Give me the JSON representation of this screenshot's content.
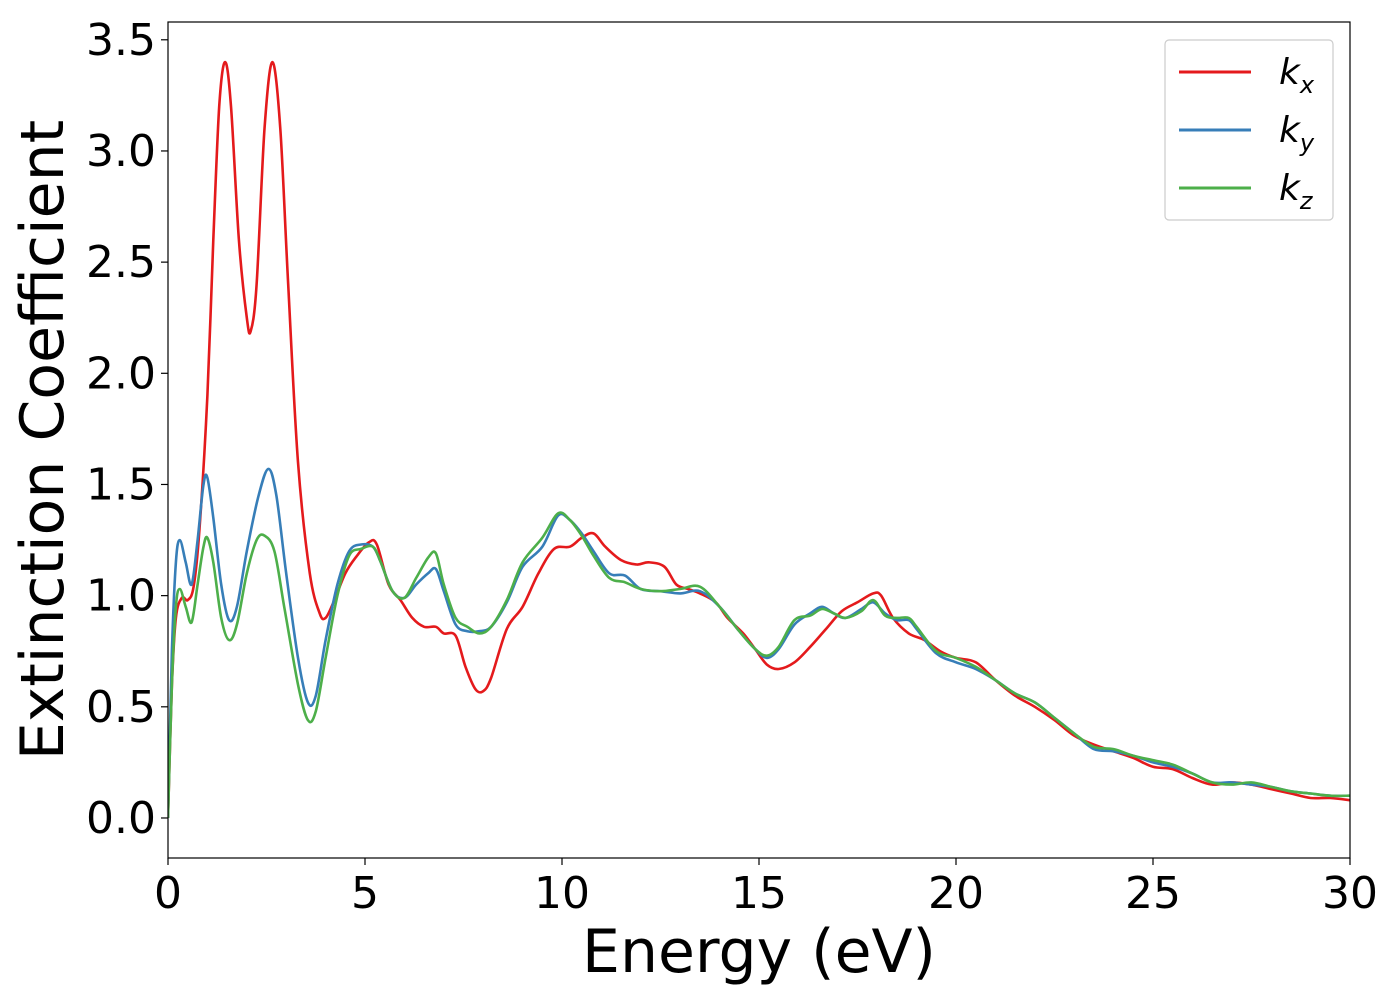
{
  "chart_data": {
    "type": "line",
    "xlabel": "Energy (eV)",
    "ylabel": "Extinction Coefficient",
    "xlim": [
      0,
      30
    ],
    "ylim": [
      -0.18,
      3.58
    ],
    "xticks": [
      0,
      5,
      10,
      15,
      20,
      25,
      30
    ],
    "yticks": [
      0.0,
      0.5,
      1.0,
      1.5,
      2.0,
      2.5,
      3.0,
      3.5
    ],
    "xtick_labels": [
      "0",
      "5",
      "10",
      "15",
      "20",
      "25",
      "30"
    ],
    "ytick_labels": [
      "0.0",
      "0.5",
      "1.0",
      "1.5",
      "2.0",
      "2.5",
      "3.0",
      "3.5"
    ],
    "grid": false,
    "legend": {
      "placement": "top-right"
    },
    "series": [
      {
        "name": "k_x",
        "label_base": "k",
        "label_sub": "x",
        "color": "#e41a1c",
        "points": [
          [
            0,
            0
          ],
          [
            0.1,
            0.6
          ],
          [
            0.2,
            0.9
          ],
          [
            0.35,
            0.99
          ],
          [
            0.5,
            0.98
          ],
          [
            0.65,
            1.04
          ],
          [
            0.8,
            1.3
          ],
          [
            1.0,
            1.9
          ],
          [
            1.15,
            2.6
          ],
          [
            1.3,
            3.2
          ],
          [
            1.45,
            3.4
          ],
          [
            1.6,
            3.2
          ],
          [
            1.8,
            2.6
          ],
          [
            2.0,
            2.25
          ],
          [
            2.1,
            2.19
          ],
          [
            2.25,
            2.4
          ],
          [
            2.45,
            3.1
          ],
          [
            2.65,
            3.4
          ],
          [
            2.85,
            3.1
          ],
          [
            3.05,
            2.4
          ],
          [
            3.3,
            1.6
          ],
          [
            3.6,
            1.1
          ],
          [
            3.85,
            0.92
          ],
          [
            4.0,
            0.9
          ],
          [
            4.2,
            0.97
          ],
          [
            4.5,
            1.1
          ],
          [
            4.8,
            1.18
          ],
          [
            5.1,
            1.24
          ],
          [
            5.3,
            1.23
          ],
          [
            5.6,
            1.05
          ],
          [
            5.9,
            0.98
          ],
          [
            6.2,
            0.9
          ],
          [
            6.5,
            0.86
          ],
          [
            6.8,
            0.86
          ],
          [
            7.0,
            0.83
          ],
          [
            7.3,
            0.82
          ],
          [
            7.55,
            0.68
          ],
          [
            7.8,
            0.58
          ],
          [
            8.0,
            0.57
          ],
          [
            8.2,
            0.63
          ],
          [
            8.6,
            0.85
          ],
          [
            9.0,
            0.95
          ],
          [
            9.4,
            1.1
          ],
          [
            9.8,
            1.21
          ],
          [
            10.2,
            1.22
          ],
          [
            10.5,
            1.26
          ],
          [
            10.8,
            1.28
          ],
          [
            11.1,
            1.22
          ],
          [
            11.5,
            1.16
          ],
          [
            11.9,
            1.14
          ],
          [
            12.2,
            1.15
          ],
          [
            12.6,
            1.13
          ],
          [
            12.9,
            1.05
          ],
          [
            13.2,
            1.03
          ],
          [
            13.5,
            1.01
          ],
          [
            13.9,
            0.97
          ],
          [
            14.2,
            0.9
          ],
          [
            14.6,
            0.83
          ],
          [
            14.9,
            0.76
          ],
          [
            15.2,
            0.69
          ],
          [
            15.5,
            0.67
          ],
          [
            15.9,
            0.7
          ],
          [
            16.3,
            0.77
          ],
          [
            16.7,
            0.85
          ],
          [
            17.1,
            0.93
          ],
          [
            17.5,
            0.97
          ],
          [
            17.9,
            1.01
          ],
          [
            18.1,
            1.0
          ],
          [
            18.4,
            0.9
          ],
          [
            18.8,
            0.83
          ],
          [
            19.2,
            0.8
          ],
          [
            19.6,
            0.75
          ],
          [
            20.0,
            0.72
          ],
          [
            20.5,
            0.7
          ],
          [
            21.0,
            0.62
          ],
          [
            21.5,
            0.55
          ],
          [
            22.0,
            0.5
          ],
          [
            22.5,
            0.44
          ],
          [
            23.0,
            0.37
          ],
          [
            23.5,
            0.33
          ],
          [
            24.0,
            0.3
          ],
          [
            24.5,
            0.27
          ],
          [
            25.0,
            0.23
          ],
          [
            25.5,
            0.22
          ],
          [
            26.0,
            0.18
          ],
          [
            26.5,
            0.15
          ],
          [
            27.0,
            0.16
          ],
          [
            27.5,
            0.15
          ],
          [
            28.0,
            0.13
          ],
          [
            28.5,
            0.11
          ],
          [
            29.0,
            0.09
          ],
          [
            29.5,
            0.09
          ],
          [
            30.0,
            0.08
          ]
        ]
      },
      {
        "name": "k_y",
        "label_base": "k",
        "label_sub": "y",
        "color": "#377eb8",
        "points": [
          [
            0,
            0
          ],
          [
            0.1,
            0.75
          ],
          [
            0.2,
            1.15
          ],
          [
            0.3,
            1.25
          ],
          [
            0.45,
            1.15
          ],
          [
            0.6,
            1.05
          ],
          [
            0.75,
            1.25
          ],
          [
            0.9,
            1.5
          ],
          [
            1.0,
            1.53
          ],
          [
            1.15,
            1.35
          ],
          [
            1.35,
            1.05
          ],
          [
            1.55,
            0.89
          ],
          [
            1.75,
            0.95
          ],
          [
            2.0,
            1.2
          ],
          [
            2.3,
            1.45
          ],
          [
            2.55,
            1.57
          ],
          [
            2.75,
            1.45
          ],
          [
            3.0,
            1.1
          ],
          [
            3.3,
            0.72
          ],
          [
            3.55,
            0.52
          ],
          [
            3.75,
            0.55
          ],
          [
            4.0,
            0.8
          ],
          [
            4.3,
            1.05
          ],
          [
            4.6,
            1.2
          ],
          [
            4.9,
            1.23
          ],
          [
            5.2,
            1.22
          ],
          [
            5.4,
            1.15
          ],
          [
            5.7,
            1.02
          ],
          [
            6.0,
            0.99
          ],
          [
            6.3,
            1.05
          ],
          [
            6.6,
            1.1
          ],
          [
            6.8,
            1.12
          ],
          [
            7.0,
            1.02
          ],
          [
            7.3,
            0.87
          ],
          [
            7.6,
            0.84
          ],
          [
            7.9,
            0.84
          ],
          [
            8.2,
            0.86
          ],
          [
            8.6,
            0.97
          ],
          [
            9.0,
            1.13
          ],
          [
            9.5,
            1.22
          ],
          [
            9.9,
            1.36
          ],
          [
            10.2,
            1.34
          ],
          [
            10.5,
            1.28
          ],
          [
            10.8,
            1.2
          ],
          [
            11.2,
            1.1
          ],
          [
            11.6,
            1.09
          ],
          [
            12.0,
            1.03
          ],
          [
            12.5,
            1.02
          ],
          [
            13.0,
            1.01
          ],
          [
            13.5,
            1.02
          ],
          [
            14.0,
            0.95
          ],
          [
            14.5,
            0.84
          ],
          [
            14.9,
            0.76
          ],
          [
            15.2,
            0.72
          ],
          [
            15.5,
            0.76
          ],
          [
            15.9,
            0.87
          ],
          [
            16.3,
            0.92
          ],
          [
            16.6,
            0.95
          ],
          [
            16.9,
            0.92
          ],
          [
            17.2,
            0.9
          ],
          [
            17.6,
            0.94
          ],
          [
            17.9,
            0.97
          ],
          [
            18.2,
            0.92
          ],
          [
            18.5,
            0.89
          ],
          [
            18.8,
            0.89
          ],
          [
            19.0,
            0.85
          ],
          [
            19.5,
            0.74
          ],
          [
            20.0,
            0.7
          ],
          [
            20.5,
            0.67
          ],
          [
            21.0,
            0.62
          ],
          [
            21.5,
            0.56
          ],
          [
            22.0,
            0.52
          ],
          [
            22.5,
            0.45
          ],
          [
            23.0,
            0.38
          ],
          [
            23.5,
            0.31
          ],
          [
            24.0,
            0.3
          ],
          [
            24.5,
            0.28
          ],
          [
            25.0,
            0.25
          ],
          [
            25.5,
            0.23
          ],
          [
            26.0,
            0.2
          ],
          [
            26.5,
            0.16
          ],
          [
            27.0,
            0.16
          ],
          [
            27.5,
            0.15
          ],
          [
            28.0,
            0.14
          ],
          [
            28.5,
            0.12
          ],
          [
            29.0,
            0.11
          ],
          [
            29.5,
            0.1
          ],
          [
            30.0,
            0.1
          ]
        ]
      },
      {
        "name": "k_z",
        "label_base": "k",
        "label_sub": "z",
        "color": "#4daf4a",
        "points": [
          [
            0,
            0
          ],
          [
            0.1,
            0.6
          ],
          [
            0.2,
            0.95
          ],
          [
            0.3,
            1.03
          ],
          [
            0.45,
            0.95
          ],
          [
            0.6,
            0.88
          ],
          [
            0.75,
            1.05
          ],
          [
            0.9,
            1.22
          ],
          [
            1.0,
            1.26
          ],
          [
            1.15,
            1.15
          ],
          [
            1.35,
            0.9
          ],
          [
            1.55,
            0.8
          ],
          [
            1.75,
            0.87
          ],
          [
            2.0,
            1.1
          ],
          [
            2.25,
            1.25
          ],
          [
            2.45,
            1.27
          ],
          [
            2.7,
            1.2
          ],
          [
            2.95,
            0.95
          ],
          [
            3.3,
            0.6
          ],
          [
            3.55,
            0.44
          ],
          [
            3.75,
            0.48
          ],
          [
            4.0,
            0.72
          ],
          [
            4.3,
            1.0
          ],
          [
            4.6,
            1.18
          ],
          [
            4.9,
            1.21
          ],
          [
            5.2,
            1.22
          ],
          [
            5.4,
            1.15
          ],
          [
            5.7,
            1.02
          ],
          [
            6.0,
            0.99
          ],
          [
            6.3,
            1.08
          ],
          [
            6.6,
            1.17
          ],
          [
            6.8,
            1.19
          ],
          [
            7.0,
            1.05
          ],
          [
            7.3,
            0.9
          ],
          [
            7.6,
            0.86
          ],
          [
            7.9,
            0.83
          ],
          [
            8.2,
            0.86
          ],
          [
            8.6,
            0.98
          ],
          [
            9.0,
            1.15
          ],
          [
            9.5,
            1.26
          ],
          [
            9.9,
            1.37
          ],
          [
            10.2,
            1.34
          ],
          [
            10.5,
            1.27
          ],
          [
            10.8,
            1.18
          ],
          [
            11.2,
            1.08
          ],
          [
            11.6,
            1.06
          ],
          [
            12.0,
            1.03
          ],
          [
            12.5,
            1.02
          ],
          [
            13.0,
            1.03
          ],
          [
            13.5,
            1.04
          ],
          [
            14.0,
            0.95
          ],
          [
            14.5,
            0.84
          ],
          [
            14.9,
            0.76
          ],
          [
            15.2,
            0.73
          ],
          [
            15.5,
            0.77
          ],
          [
            15.9,
            0.89
          ],
          [
            16.3,
            0.91
          ],
          [
            16.6,
            0.94
          ],
          [
            16.9,
            0.92
          ],
          [
            17.2,
            0.9
          ],
          [
            17.6,
            0.93
          ],
          [
            17.9,
            0.98
          ],
          [
            18.2,
            0.91
          ],
          [
            18.5,
            0.9
          ],
          [
            18.8,
            0.9
          ],
          [
            19.0,
            0.86
          ],
          [
            19.5,
            0.75
          ],
          [
            20.0,
            0.72
          ],
          [
            20.5,
            0.68
          ],
          [
            21.0,
            0.62
          ],
          [
            21.5,
            0.56
          ],
          [
            22.0,
            0.52
          ],
          [
            22.5,
            0.45
          ],
          [
            23.0,
            0.38
          ],
          [
            23.5,
            0.32
          ],
          [
            24.0,
            0.31
          ],
          [
            24.5,
            0.28
          ],
          [
            25.0,
            0.26
          ],
          [
            25.5,
            0.24
          ],
          [
            26.0,
            0.2
          ],
          [
            26.5,
            0.16
          ],
          [
            27.0,
            0.15
          ],
          [
            27.5,
            0.16
          ],
          [
            28.0,
            0.14
          ],
          [
            28.5,
            0.12
          ],
          [
            29.0,
            0.11
          ],
          [
            29.5,
            0.1
          ],
          [
            30.0,
            0.1
          ]
        ]
      }
    ]
  }
}
